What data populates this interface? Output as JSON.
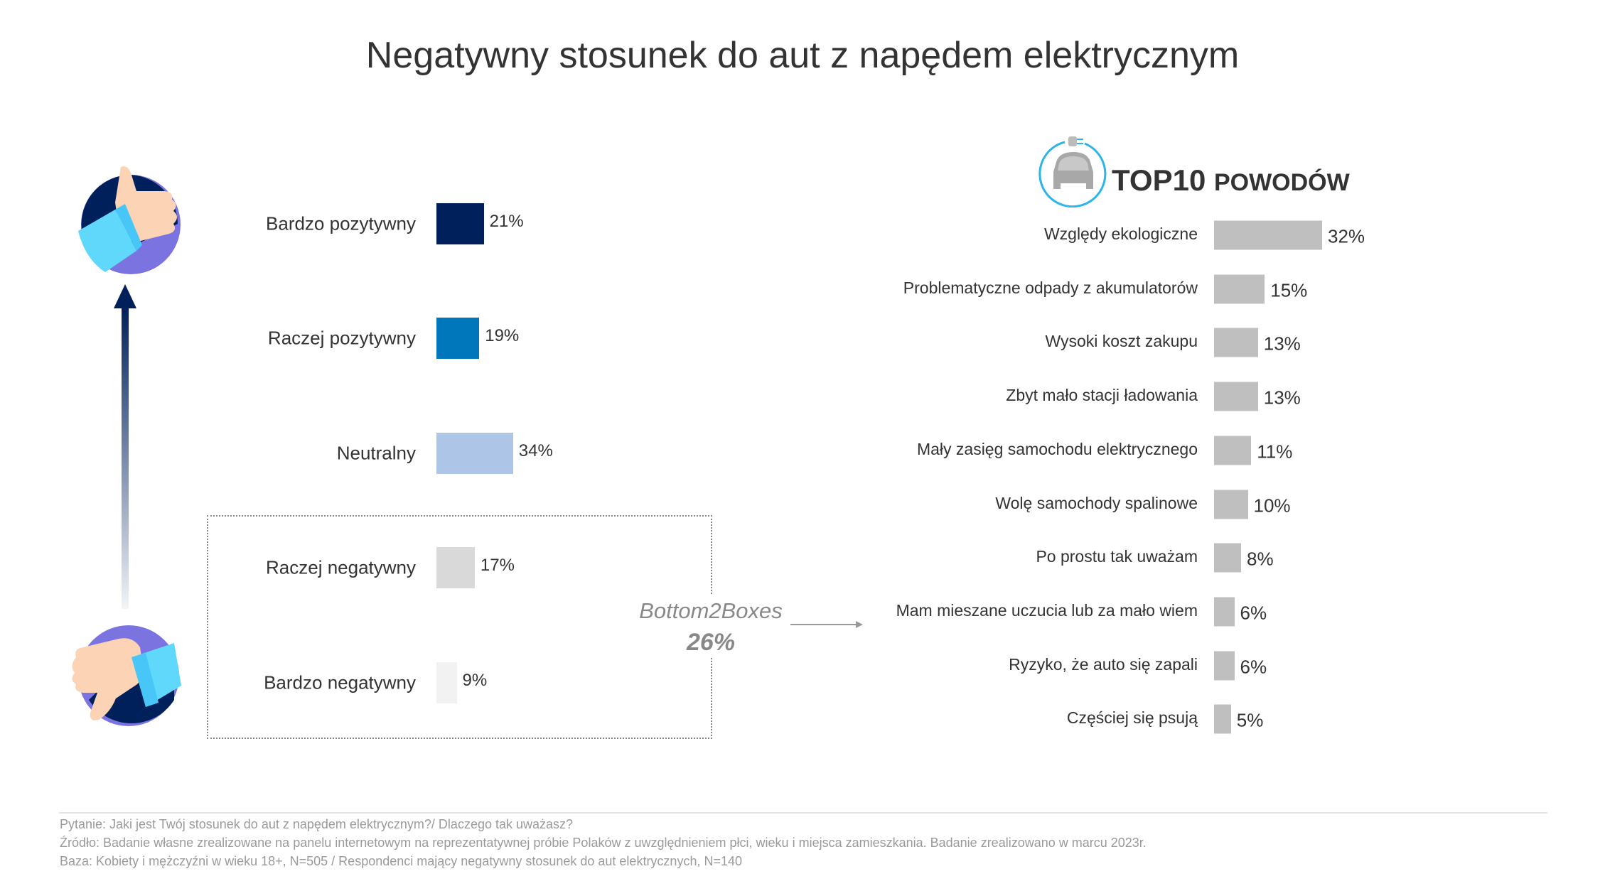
{
  "title": "Negatywny stosunek do aut z napędem elektrycznym",
  "chart_data": [
    {
      "type": "bar",
      "orientation": "horizontal",
      "categories": [
        "Bardzo pozytywny",
        "Raczej pozytywny",
        "Neutralny",
        "Raczej negatywny",
        "Bardzo negatywny"
      ],
      "values": [
        21,
        19,
        34,
        17,
        9
      ],
      "value_labels": [
        "21%",
        "19%",
        "34%",
        "17%",
        "9%"
      ],
      "colors": [
        "#00205b",
        "#0077bb",
        "#adc6e8",
        "#d9d9d9",
        "#f2f2f2"
      ],
      "annotation": {
        "label": "Bottom2Boxes",
        "value": "26%"
      },
      "grid": false
    },
    {
      "type": "bar",
      "orientation": "horizontal",
      "title": "TOP10",
      "subtitle": "POWODÓW",
      "categories": [
        "Względy ekologiczne",
        "Problematyczne odpady z akumulatorów",
        "Wysoki koszt zakupu",
        "Zbyt mało stacji ładowania",
        "Mały zasięg samochodu elektrycznego",
        "Wolę samochody spalinowe",
        "Po prostu tak uważam",
        "Mam mieszane uczucia lub za mało wiem",
        "Ryzyko, że auto się zapali",
        "Częściej się psują"
      ],
      "values": [
        32,
        15,
        13,
        13,
        11,
        10,
        8,
        6,
        6,
        5
      ],
      "value_labels": [
        "32%",
        "15%",
        "13%",
        "13%",
        "11%",
        "10%",
        "8%",
        "6%",
        "6%",
        "5%"
      ],
      "color": "#bfbfbf",
      "grid": false
    }
  ],
  "icons": {
    "top": "thumbs-up-icon",
    "bottom": "thumbs-down-icon",
    "right": "electric-car-plug-icon",
    "arrow": "arrow-up-icon"
  },
  "footer": [
    "Pytanie: Jaki jest Twój stosunek do aut z napędem elektrycznym?/ Dlaczego tak uważasz?",
    "Źródło: Badanie własne zrealizowane na panelu internetowym na reprezentatywnej próbie Polaków z uwzględnieniem płci, wieku i miejsca zamieszkania. Badanie zrealizowano w marcu 2023r.",
    "Baza: Kobiety i mężczyźni w wieku 18+, N=505 / Respondenci mający negatywny stosunek do aut elektrycznych, N=140"
  ]
}
